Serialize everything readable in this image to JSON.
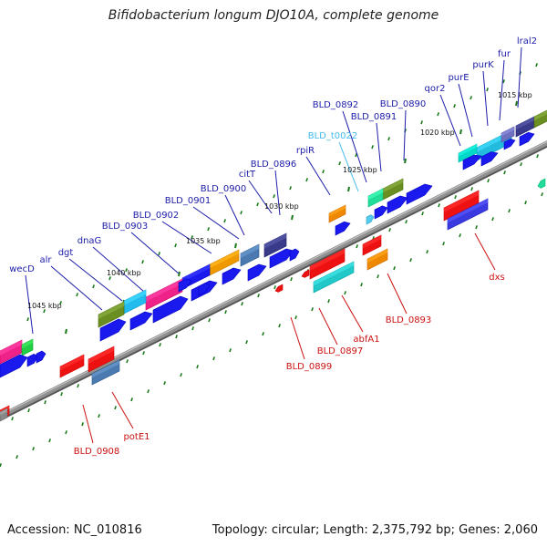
{
  "title": "Bifidobacterium longum DJO10A, complete genome",
  "footer": {
    "accession": "Accession: NC_010816",
    "summary": "Topology: circular; Length: 2,375,792 bp; Genes: 2,060"
  },
  "colors": {
    "forward_label": "#1c1caa",
    "reverse_label": "#cc1111",
    "trna_label": "#44bbee",
    "backbone": "#808080",
    "tick": "#1a7a1a"
  },
  "scale_labels": [
    "1015 kbp",
    "1020 kbp",
    "1025 kbp",
    "1030 kbp",
    "1035 kbp",
    "1040 kbp",
    "1045 kbp"
  ],
  "forward_genes": [
    "lral2",
    "fur",
    "purK",
    "purE",
    "qor2",
    "BLD_0890",
    "BLD_0891",
    "BLD_0892",
    "BLD_t0022",
    "rpiR",
    "BLD_0896",
    "citT",
    "BLD_0900",
    "BLD_0901",
    "BLD_0902",
    "BLD_0903",
    "dnaG",
    "dgt",
    "alr",
    "wecD"
  ],
  "reverse_genes": [
    "dxs",
    "BLD_0893",
    "abfA1",
    "BLD_0897",
    "BLD_0899",
    "potE1",
    "BLD_0908"
  ]
}
